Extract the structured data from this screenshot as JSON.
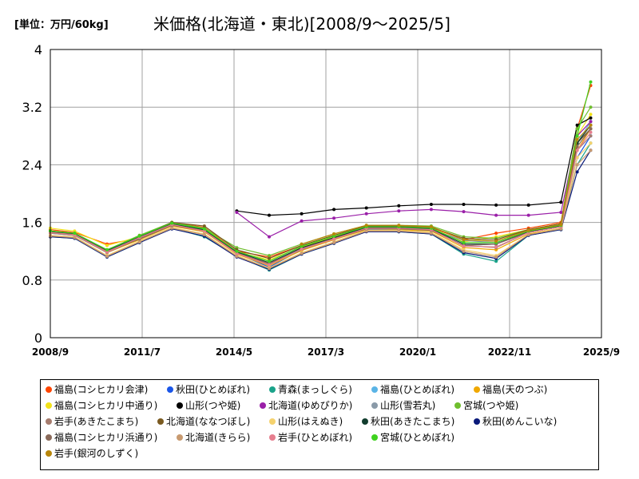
{
  "unit_label": "[単位：万円/60kg]",
  "title": "米価格(北海道・東北)[2008/9～2025/5]",
  "chart_data": {
    "type": "line",
    "ylim": [
      0,
      4
    ],
    "yticks": [
      "0",
      "0.8",
      "1.6",
      "2.4",
      "3.2",
      "4"
    ],
    "xticks": [
      "2008/9",
      "2011/7",
      "2014/5",
      "2017/3",
      "2020/1",
      "2022/11",
      "2025/9"
    ],
    "grid": true,
    "legend_placement": "bottom",
    "x": [
      "2008/9",
      "2009/6",
      "2010/6",
      "2011/6",
      "2012/6",
      "2013/6",
      "2014/6",
      "2015/6",
      "2016/6",
      "2017/6",
      "2018/6",
      "2019/6",
      "2020/6",
      "2021/6",
      "2022/6",
      "2023/6",
      "2024/6",
      "2024/12",
      "2025/5"
    ],
    "series": [
      {
        "name": "福島(コシヒカリ会津)",
        "color": "#ff4500",
        "values": [
          1.5,
          1.46,
          1.3,
          1.38,
          1.6,
          1.53,
          1.2,
          1.12,
          1.28,
          1.42,
          1.55,
          1.53,
          1.53,
          1.36,
          1.45,
          1.52,
          1.6,
          2.9,
          3.5
        ]
      },
      {
        "name": "秋田(ひとめぼれ)",
        "color": "#1a56e8",
        "values": [
          1.45,
          1.42,
          1.19,
          1.41,
          1.56,
          1.47,
          1.17,
          0.98,
          1.22,
          1.36,
          1.53,
          1.52,
          1.5,
          1.28,
          1.3,
          1.47,
          1.55,
          2.5,
          2.8
        ]
      },
      {
        "name": "青森(まっしぐら)",
        "color": "#1aa38a",
        "values": [
          1.4,
          1.38,
          1.12,
          1.32,
          1.52,
          1.4,
          1.13,
          0.94,
          1.16,
          1.31,
          1.48,
          1.47,
          1.44,
          1.16,
          1.06,
          1.42,
          1.5,
          2.4,
          2.7
        ]
      },
      {
        "name": "福島(ひとめぼれ)",
        "color": "#5ab4e6",
        "values": [
          1.47,
          1.44,
          1.2,
          1.39,
          1.57,
          1.49,
          1.17,
          1.02,
          1.24,
          1.38,
          1.52,
          1.52,
          1.5,
          1.27,
          1.26,
          1.46,
          1.54,
          2.7,
          3.0
        ]
      },
      {
        "name": "福島(天のつぶ)",
        "color": "#f0a800",
        "values": [
          1.46,
          1.43,
          1.18,
          1.36,
          1.55,
          1.47,
          1.16,
          1.0,
          1.21,
          1.36,
          1.5,
          1.5,
          1.48,
          1.25,
          1.22,
          1.44,
          1.52,
          2.6,
          2.9
        ]
      },
      {
        "name": "福島(コシヒカリ中通り)",
        "color": "#f2e21a",
        "values": [
          1.52,
          1.48,
          1.28,
          1.4,
          1.59,
          1.52,
          1.19,
          1.08,
          1.26,
          1.4,
          1.54,
          1.53,
          1.52,
          1.33,
          1.4,
          1.5,
          1.58,
          2.8,
          3.1
        ]
      },
      {
        "name": "山形(つや姫)",
        "color": "#000000",
        "values": [
          null,
          null,
          null,
          null,
          null,
          null,
          1.76,
          1.7,
          1.72,
          1.78,
          1.8,
          1.83,
          1.85,
          1.85,
          1.84,
          1.84,
          1.88,
          2.95,
          3.05
        ]
      },
      {
        "name": "北海道(ゆめぴりか)",
        "color": "#9a1fa8",
        "values": [
          null,
          null,
          null,
          null,
          null,
          null,
          1.74,
          1.4,
          1.62,
          1.66,
          1.72,
          1.76,
          1.78,
          1.75,
          1.7,
          1.7,
          1.74,
          2.8,
          3.0
        ]
      },
      {
        "name": "山形(雪若丸)",
        "color": "#8a9aa8",
        "values": [
          null,
          null,
          null,
          null,
          null,
          null,
          null,
          null,
          null,
          null,
          1.5,
          1.51,
          1.5,
          1.35,
          1.32,
          1.46,
          1.54,
          2.7,
          2.9
        ]
      },
      {
        "name": "宮城(つや姫)",
        "color": "#6fbe2d",
        "values": [
          1.48,
          1.45,
          1.22,
          1.42,
          1.6,
          1.52,
          1.25,
          1.14,
          1.3,
          1.44,
          1.56,
          1.56,
          1.55,
          1.4,
          1.38,
          1.5,
          1.58,
          2.9,
          3.2
        ]
      },
      {
        "name": "岩手(あきたこまち)",
        "color": "#a67c6e",
        "values": [
          1.45,
          1.42,
          1.18,
          1.38,
          1.57,
          1.49,
          1.18,
          1.02,
          1.24,
          1.38,
          1.52,
          1.52,
          1.5,
          1.28,
          1.25,
          1.46,
          1.54,
          2.6,
          2.8
        ]
      },
      {
        "name": "北海道(ななつぼし)",
        "color": "#7a5a20",
        "values": [
          1.48,
          1.44,
          1.22,
          1.4,
          1.6,
          1.55,
          1.22,
          1.1,
          1.28,
          1.42,
          1.55,
          1.55,
          1.53,
          1.38,
          1.36,
          1.5,
          1.58,
          2.7,
          2.9
        ]
      },
      {
        "name": "山形(はえぬき)",
        "color": "#f5d26e",
        "values": [
          1.42,
          1.4,
          1.14,
          1.34,
          1.53,
          1.44,
          1.14,
          0.97,
          1.18,
          1.33,
          1.49,
          1.49,
          1.46,
          1.22,
          1.14,
          1.43,
          1.52,
          2.5,
          2.7
        ]
      },
      {
        "name": "秋田(あきたこまち)",
        "color": "#123d2e",
        "values": [
          1.47,
          1.44,
          1.21,
          1.4,
          1.58,
          1.5,
          1.19,
          1.04,
          1.25,
          1.39,
          1.53,
          1.53,
          1.51,
          1.3,
          1.3,
          1.47,
          1.55,
          2.7,
          2.95
        ]
      },
      {
        "name": "秋田(めんこいな)",
        "color": "#0a1a7a",
        "values": [
          1.4,
          1.38,
          1.12,
          1.32,
          1.51,
          1.41,
          1.12,
          0.95,
          1.16,
          1.31,
          1.47,
          1.47,
          1.44,
          1.18,
          1.1,
          1.42,
          1.5,
          2.3,
          2.6
        ]
      },
      {
        "name": "福島(コシヒカリ浜通り)",
        "color": "#8a6a5a",
        "values": [
          1.46,
          1.43,
          1.2,
          1.37,
          1.56,
          1.48,
          1.17,
          1.03,
          1.23,
          1.37,
          1.51,
          1.51,
          1.49,
          1.28,
          1.3,
          1.46,
          1.54,
          2.65,
          2.9
        ]
      },
      {
        "name": "北海道(きらら)",
        "color": "#c89a70",
        "values": [
          1.41,
          1.39,
          1.13,
          1.33,
          1.52,
          1.43,
          1.13,
          0.96,
          1.17,
          1.32,
          1.48,
          1.48,
          1.45,
          1.2,
          1.12,
          1.43,
          1.51,
          2.4,
          2.6
        ]
      },
      {
        "name": "岩手(ひとめぼれ)",
        "color": "#e67e8e",
        "values": [
          1.46,
          1.43,
          1.19,
          1.39,
          1.57,
          1.48,
          1.17,
          1.01,
          1.23,
          1.37,
          1.52,
          1.52,
          1.5,
          1.27,
          1.26,
          1.46,
          1.54,
          2.6,
          2.85
        ]
      },
      {
        "name": "宮城(ひとめぼれ)",
        "color": "#3fd21f",
        "values": [
          1.48,
          1.45,
          1.22,
          1.41,
          1.59,
          1.51,
          1.2,
          1.06,
          1.27,
          1.41,
          1.54,
          1.54,
          1.52,
          1.32,
          1.32,
          1.48,
          1.56,
          2.8,
          3.55
        ]
      },
      {
        "name": "岩手(銀河のしずく)",
        "color": "#b8860b",
        "values": [
          null,
          null,
          null,
          null,
          null,
          null,
          null,
          null,
          1.3,
          1.44,
          1.56,
          1.56,
          1.54,
          1.36,
          1.34,
          1.49,
          1.57,
          2.75,
          2.95
        ]
      }
    ]
  }
}
